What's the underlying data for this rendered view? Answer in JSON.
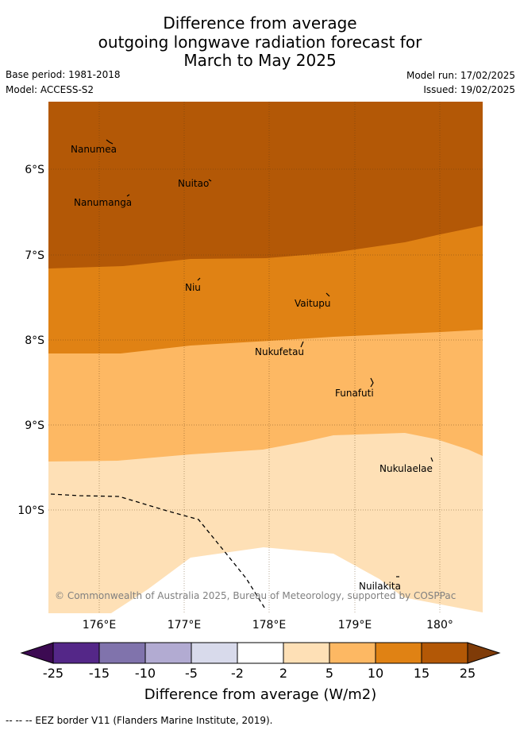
{
  "title": {
    "line1": "Difference from average",
    "line2": "outgoing longwave radiation forecast for",
    "line3": "March to May 2025"
  },
  "meta": {
    "base_period": "Base period: 1981-2018",
    "model": "Model: ACCESS-S2",
    "model_run": "Model run: 17/02/2025",
    "issued": "Issued: 19/02/2025"
  },
  "map": {
    "x_ticks": [
      "176°E",
      "177°E",
      "178°E",
      "179°E",
      "180°"
    ],
    "y_ticks": [
      "6°S",
      "7°S",
      "8°S",
      "9°S",
      "10°S"
    ],
    "places": [
      "Nanumea",
      "Nuitao",
      "Nanumanga",
      "Niu",
      "Vaitupu",
      "Nukufetau",
      "Funafuti",
      "Nukulaelae",
      "Nuilakita"
    ],
    "copyright": "© Commonwealth of Australia 2025, Bureau of Meteorology, supported by COSPPac",
    "band_colors": [
      "#b35806",
      "#e08214",
      "#fdb863",
      "#fee0b6",
      "#ffffff"
    ]
  },
  "colorbar": {
    "labels": [
      "-25",
      "-15",
      "-10",
      "-5",
      "-2",
      "2",
      "5",
      "10",
      "15",
      "25"
    ],
    "colors": [
      "#3c0a52",
      "#542788",
      "#8073ac",
      "#b2abd2",
      "#d8daeb",
      "#ffffff",
      "#fee0b6",
      "#fdb863",
      "#e08214",
      "#b35806",
      "#7f3b08"
    ],
    "title": "Difference from average (W/m2)"
  },
  "footer": "--  --  -- EEZ border V11 (Flanders Marine Institute, 2019)."
}
